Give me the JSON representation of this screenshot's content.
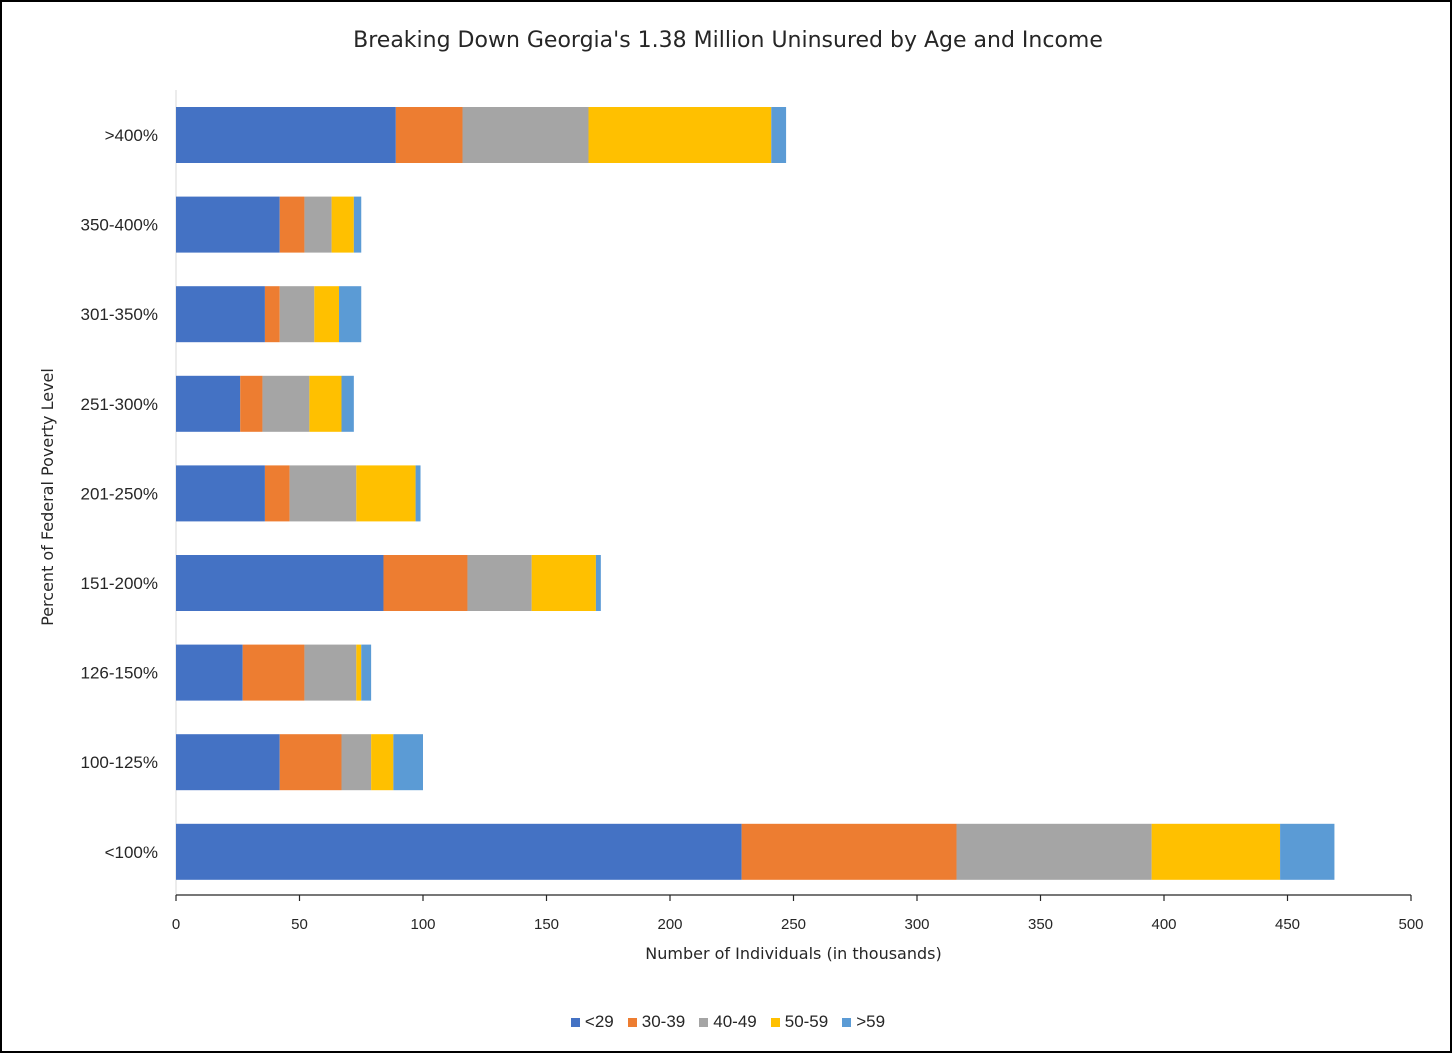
{
  "chart_data": {
    "type": "bar",
    "orientation": "horizontal",
    "stacked": true,
    "title": "Breaking Down Georgia's 1.38 Million Uninsured by Age and Income",
    "xlabel": "Number of Individuals (in thousands)",
    "ylabel": "Percent of Federal Poverty Level",
    "xlim": [
      0,
      500
    ],
    "xticks": [
      0,
      50,
      100,
      150,
      200,
      250,
      300,
      350,
      400,
      450,
      500
    ],
    "categories": [
      ">400%",
      "350-400%",
      "301-350%",
      "251-300%",
      "201-250%",
      "151-200%",
      "126-150%",
      "100-125%",
      "<100%"
    ],
    "series": [
      {
        "name": "<29",
        "color": "#4472C4",
        "values": [
          89,
          42,
          36,
          26,
          36,
          84,
          27,
          42,
          229
        ]
      },
      {
        "name": "30-39",
        "color": "#ED7D31",
        "values": [
          27,
          10,
          6,
          9,
          10,
          34,
          25,
          25,
          87
        ]
      },
      {
        "name": "40-49",
        "color": "#A5A5A5",
        "values": [
          51,
          11,
          14,
          19,
          27,
          26,
          21,
          12,
          79
        ]
      },
      {
        "name": "50-59",
        "color": "#FFC000",
        "values": [
          74,
          9,
          10,
          13,
          24,
          26,
          2,
          9,
          52
        ]
      },
      {
        "name": ">59",
        "color": "#5B9BD5",
        "values": [
          6,
          3,
          9,
          5,
          2,
          2,
          4,
          12,
          22
        ]
      }
    ],
    "legend_position": "bottom",
    "grid": false
  }
}
